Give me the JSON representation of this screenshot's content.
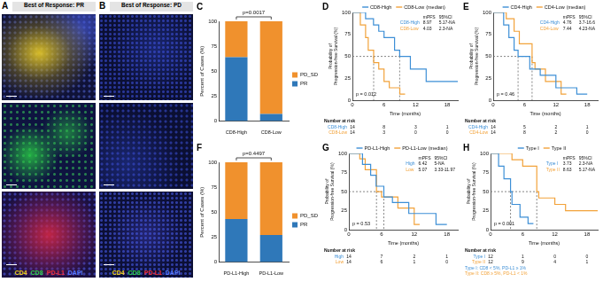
{
  "images": {
    "panels": [
      {
        "panel_label": "A",
        "title": "Best of Response: PR"
      },
      {
        "panel_label": "B",
        "title": "Best of Response: PD"
      }
    ],
    "channels": [
      {
        "name": "CD4",
        "color": "#f2d21b"
      },
      {
        "name": "CD8",
        "color": "#2fd14a"
      },
      {
        "name": "PD-L1",
        "color": "#e8303a"
      },
      {
        "name": "DAPI",
        "color": "#5a7cff"
      }
    ]
  },
  "chart_data": [
    {
      "panel_label": "C",
      "type": "bar",
      "stacked": true,
      "grid": false,
      "legend": "right",
      "categories": [
        "CD8-High",
        "CD8-Low"
      ],
      "series": [
        {
          "name": "PR",
          "color": "#2f78b9",
          "values": [
            64,
            7
          ]
        },
        {
          "name": "PD_SD",
          "color": "#f0912d",
          "values": [
            36,
            93
          ]
        }
      ],
      "y_label": "Percent of Cases (%)",
      "ylim": [
        0,
        100
      ],
      "yticks": [
        0,
        25,
        50,
        75,
        100
      ],
      "annotation": "p=0.0017"
    },
    {
      "panel_label": "D",
      "type": "step",
      "grid": false,
      "legend": "top",
      "legend_note": "(median)",
      "x_label": "Time (months)",
      "y_label": "Probability of Progression-free Survival (%)",
      "xlim": [
        0,
        20
      ],
      "xticks": [
        0,
        6,
        12,
        18
      ],
      "ylim": [
        0,
        100
      ],
      "yticks": [
        0,
        25,
        50,
        75,
        100
      ],
      "median_line": 50,
      "table_header": [
        "mPFS",
        "95%CI"
      ],
      "p_label": "p = 0.012",
      "risk_table_title": "Number at risk",
      "series": [
        {
          "name": "CD8-High",
          "table_name": "CD8-High",
          "color": "#3d8fd6",
          "x": [
            0,
            2.5,
            4,
            5,
            6,
            8,
            8.97,
            11,
            14,
            20
          ],
          "values": [
            100,
            92.9,
            85.7,
            78.6,
            71.4,
            57.1,
            50,
            35.7,
            21.4,
            21.4
          ],
          "mpfs": 8.97,
          "ci": "5.17-NA",
          "at_risk": [
            14,
            8,
            3,
            1
          ]
        },
        {
          "name": "CD8-Low",
          "table_name": "CD8-Low",
          "color": "#f2a23a",
          "x": [
            0,
            1.5,
            2.5,
            3,
            4.03,
            5,
            6,
            7,
            9,
            10
          ],
          "values": [
            100,
            85.7,
            71.4,
            57.1,
            42.9,
            35.7,
            21.4,
            14.3,
            7.1,
            7.1
          ],
          "mpfs": 4.03,
          "ci": "2.3-NA",
          "at_risk": [
            14,
            3,
            0,
            0
          ]
        }
      ]
    },
    {
      "panel_label": "E",
      "type": "step",
      "grid": false,
      "legend": "top",
      "legend_note": "(median)",
      "x_label": "Time (months)",
      "y_label": "Probability of Progression-free Survival (%)",
      "xlim": [
        0,
        20
      ],
      "xticks": [
        0,
        6,
        12,
        18
      ],
      "ylim": [
        0,
        100
      ],
      "yticks": [
        0,
        25,
        50,
        75,
        100
      ],
      "median_line": 50,
      "table_header": [
        "mPFS",
        "95%CI"
      ],
      "p_label": "p = 0.46",
      "risk_table_title": "Number at risk",
      "series": [
        {
          "name": "CD4-High",
          "table_name": "CD4-High",
          "color": "#3d8fd6",
          "x": [
            0,
            2,
            3,
            4,
            4.76,
            7,
            9,
            12,
            16,
            18
          ],
          "values": [
            100,
            85.7,
            71.4,
            57.1,
            50,
            35.7,
            28.6,
            14.3,
            7.1,
            7.1
          ],
          "mpfs": 4.76,
          "ci": "3.7-16.6",
          "at_risk": [
            14,
            5,
            2,
            1
          ]
        },
        {
          "name": "CD4-Low",
          "table_name": "CD4-Low",
          "color": "#f2a23a",
          "x": [
            0,
            2.5,
            4,
            5,
            7.44,
            8,
            10,
            13,
            14
          ],
          "values": [
            100,
            92.9,
            78.6,
            64.3,
            42.9,
            35.7,
            21.4,
            7.1,
            7.1
          ],
          "mpfs": 7.44,
          "ci": "4.23-NA",
          "at_risk": [
            14,
            8,
            2,
            0
          ]
        }
      ]
    },
    {
      "panel_label": "F",
      "type": "bar",
      "stacked": true,
      "grid": false,
      "legend": "right",
      "categories": [
        "PD-L1-High",
        "PD-L1-Low"
      ],
      "series": [
        {
          "name": "PR",
          "color": "#2f78b9",
          "values": [
            43,
            27
          ]
        },
        {
          "name": "PD_SD",
          "color": "#f0912d",
          "values": [
            57,
            73
          ]
        }
      ],
      "y_label": "Percent of Cases (%)",
      "ylim": [
        0,
        100
      ],
      "yticks": [
        0,
        25,
        50,
        75,
        100
      ],
      "annotation": "p=0.4497"
    },
    {
      "panel_label": "G",
      "type": "step",
      "grid": false,
      "legend": "top",
      "legend_note": "(median)",
      "x_label": "Time (months)",
      "y_label": "Probability of Progression-free Survival (%)",
      "xlim": [
        0,
        20
      ],
      "xticks": [
        0,
        6,
        12,
        18
      ],
      "ylim": [
        0,
        100
      ],
      "yticks": [
        0,
        25,
        50,
        75,
        100
      ],
      "median_line": 50,
      "table_header": [
        "mPFS",
        "95%CI"
      ],
      "p_label": "p = 0.53",
      "risk_table_title": "Number at risk",
      "series": [
        {
          "name": "PD-L1-High",
          "table_name": "High",
          "color": "#3d8fd6",
          "x": [
            0,
            2.5,
            4,
            5,
            6.42,
            8,
            11,
            16,
            18
          ],
          "values": [
            100,
            85.7,
            71.4,
            57.1,
            42.9,
            35.7,
            21.4,
            7.1,
            7.1
          ],
          "mpfs": 6.42,
          "ci": "5-NA",
          "at_risk": [
            14,
            7,
            2,
            1
          ]
        },
        {
          "name": "PD-L1-Low",
          "table_name": "Low",
          "color": "#f2a23a",
          "x": [
            0,
            2,
            3,
            5.07,
            6,
            9,
            12,
            13
          ],
          "values": [
            100,
            92.9,
            78.6,
            50,
            42.9,
            28.6,
            7.1,
            7.1
          ],
          "mpfs": 5.07,
          "ci": "3.33-11.97",
          "at_risk": [
            14,
            6,
            1,
            0
          ]
        }
      ]
    },
    {
      "panel_label": "H",
      "type": "step",
      "grid": false,
      "legend": "top",
      "x_label": "Time (months)",
      "y_label": "Probability of Progression-free Survival (%)",
      "xlim": [
        0,
        20
      ],
      "xticks": [
        0,
        6,
        12,
        18
      ],
      "ylim": [
        0,
        100
      ],
      "yticks": [
        0,
        25,
        50,
        75,
        100
      ],
      "median_line": 50,
      "table_header": [
        "mPFS",
        "95%CI"
      ],
      "p_label": "p = 0.001",
      "risk_table_title": "Number at risk",
      "series": [
        {
          "name": "Type I",
          "table_name": "Type I",
          "color": "#3d8fd6",
          "x": [
            0,
            1.5,
            2.5,
            3.73,
            4,
            5.5,
            7,
            8
          ],
          "values": [
            100,
            83.3,
            66.7,
            50,
            33.3,
            16.7,
            8.3,
            8.3
          ],
          "mpfs": 3.73,
          "ci": "2.3-NA",
          "at_risk": [
            12,
            1,
            0,
            0
          ],
          "definition": "Type I: CD8 < 5%, PD-L1 ≥ 1%"
        },
        {
          "name": "Type II",
          "table_name": "Type II",
          "color": "#f2a23a",
          "x": [
            0,
            4,
            6,
            8.63,
            9,
            12,
            14,
            20
          ],
          "values": [
            100,
            91.7,
            83.3,
            50,
            41.7,
            33.3,
            25,
            25
          ],
          "mpfs": 8.63,
          "ci": "5.17-NA",
          "at_risk": [
            12,
            9,
            4,
            1
          ],
          "definition": "Type II: CD8 ≥ 5%, PD-L1 < 1%"
        }
      ]
    }
  ]
}
